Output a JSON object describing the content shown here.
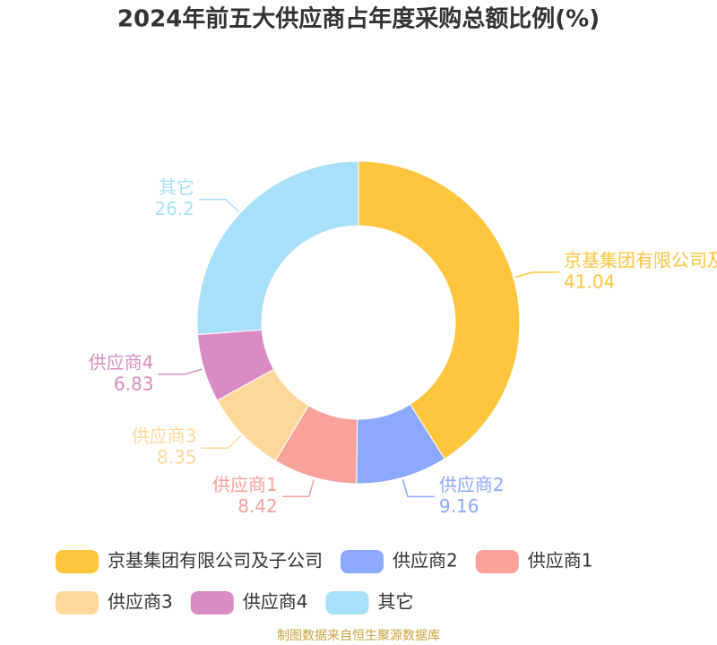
{
  "chart_data": {
    "type": "donut",
    "title": "2024年前五大供应商占年度采购总额比例(%)",
    "categories": [
      "京基集团有限公司及子公司",
      "供应商2",
      "供应商1",
      "供应商3",
      "供应商4",
      "其它"
    ],
    "values": [
      41.04,
      9.16,
      8.42,
      8.35,
      6.83,
      26.2
    ],
    "colors": [
      "#ffc53d",
      "#8aa9ff",
      "#f9a29a",
      "#ffd899",
      "#da8bc3",
      "#a8dff9"
    ],
    "source": "制图数据来自恒生聚源数据库"
  }
}
